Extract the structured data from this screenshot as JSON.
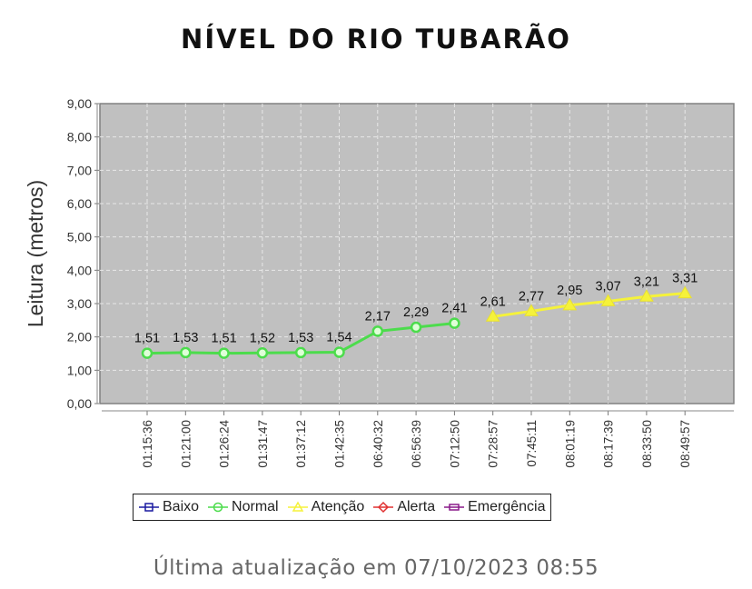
{
  "page": {
    "title": "NÍVEL DO RIO TUBARÃO",
    "footer": "Última atualização em 07/10/2023 08:55"
  },
  "chart_data": {
    "type": "line",
    "title": "NÍVEL DO RIO TUBARÃO",
    "xlabel": "",
    "ylabel": "Leitura (metros)",
    "ylim": [
      0,
      9
    ],
    "yticks": [
      "0,00",
      "1,00",
      "2,00",
      "3,00",
      "4,00",
      "5,00",
      "6,00",
      "7,00",
      "8,00",
      "9,00"
    ],
    "grid": true,
    "legend_position": "bottom",
    "categories": [
      "01:15:36",
      "01:21:00",
      "01:26:24",
      "01:31:47",
      "01:37:12",
      "01:42:35",
      "06:40:32",
      "06:56:39",
      "07:12:50",
      "07:28:57",
      "07:45:11",
      "08:01:19",
      "08:17:39",
      "08:33:50",
      "08:49:57"
    ],
    "series": [
      {
        "name": "Baixo",
        "color": "#1a1aa0",
        "marker": "square",
        "values": [
          null,
          null,
          null,
          null,
          null,
          null,
          null,
          null,
          null,
          null,
          null,
          null,
          null,
          null,
          null
        ]
      },
      {
        "name": "Normal",
        "color": "#4cdc4c",
        "marker": "circle",
        "values": [
          1.51,
          1.53,
          1.51,
          1.52,
          1.53,
          1.54,
          2.17,
          2.29,
          2.41,
          null,
          null,
          null,
          null,
          null,
          null
        ],
        "labels": [
          "1,51",
          "1,53",
          "1,51",
          "1,52",
          "1,53",
          "1,54",
          "2,17",
          "2,29",
          "2,41"
        ]
      },
      {
        "name": "Atenção",
        "color": "#f5f23a",
        "marker": "triangle",
        "values": [
          null,
          null,
          null,
          null,
          null,
          null,
          null,
          null,
          null,
          2.61,
          2.77,
          2.95,
          3.07,
          3.21,
          3.31
        ],
        "labels": [
          "2,61",
          "2,77",
          "2,95",
          "3,07",
          "3,21",
          "3,31"
        ]
      },
      {
        "name": "Alerta",
        "color": "#e03030",
        "marker": "diamond",
        "values": [
          null,
          null,
          null,
          null,
          null,
          null,
          null,
          null,
          null,
          null,
          null,
          null,
          null,
          null,
          null
        ]
      },
      {
        "name": "Emergência",
        "color": "#8a1a8a",
        "marker": "rect",
        "values": [
          null,
          null,
          null,
          null,
          null,
          null,
          null,
          null,
          null,
          null,
          null,
          null,
          null,
          null,
          null
        ]
      }
    ]
  },
  "legend": [
    {
      "label": "Baixo",
      "color": "#1a1aa0",
      "marker": "square"
    },
    {
      "label": "Normal",
      "color": "#4cdc4c",
      "marker": "circle"
    },
    {
      "label": "Atenção",
      "color": "#f5f23a",
      "marker": "triangle"
    },
    {
      "label": "Alerta",
      "color": "#e03030",
      "marker": "diamond"
    },
    {
      "label": "Emergência",
      "color": "#8a1a8a",
      "marker": "rect"
    }
  ],
  "colors": {
    "plot_bg": "#c0c0c0",
    "grid": "#e8e8e8",
    "axis": "#777777"
  }
}
